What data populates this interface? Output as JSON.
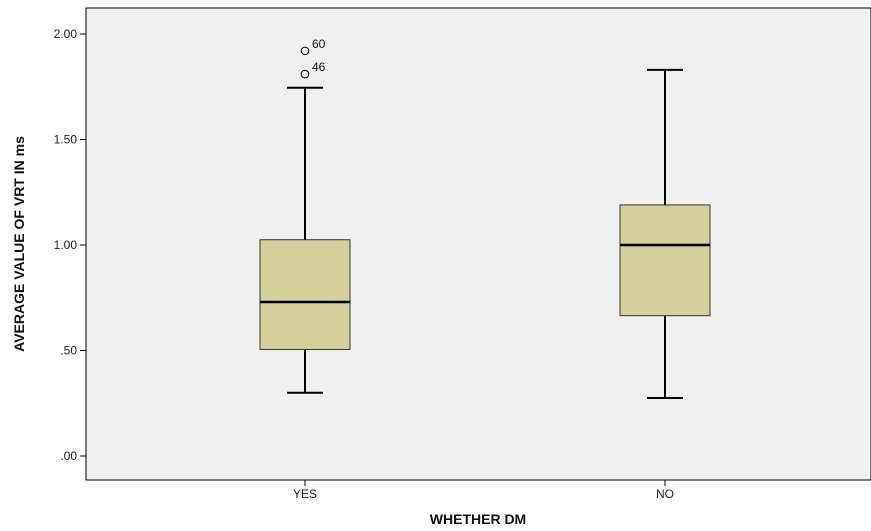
{
  "chart_data": {
    "type": "boxplot",
    "xlabel": "WHETHER DM",
    "ylabel": "AVERAGE VALUE OF VRT IN ms",
    "ylim": [
      -0.1,
      2.1
    ],
    "yticks": [
      {
        "value": 0.0,
        "label": ".00"
      },
      {
        "value": 0.5,
        "label": ".50"
      },
      {
        "value": 1.0,
        "label": "1.00"
      },
      {
        "value": 1.5,
        "label": "1.50"
      },
      {
        "value": 2.0,
        "label": "2.00"
      }
    ],
    "categories": [
      "YES",
      "NO"
    ],
    "boxes": [
      {
        "category": "YES",
        "whisker_low": 0.3,
        "q1": 0.505,
        "median": 0.73,
        "q3": 1.025,
        "whisker_high": 1.745,
        "outliers": [
          {
            "value": 1.92,
            "label": "60"
          },
          {
            "value": 1.81,
            "label": "46"
          }
        ]
      },
      {
        "category": "NO",
        "whisker_low": 0.275,
        "q1": 0.665,
        "median": 1.0,
        "q3": 1.19,
        "whisker_high": 1.83,
        "outliers": []
      }
    ],
    "grid": false,
    "colors": {
      "box_fill": "#d5cf9a",
      "plot_background": "#f0f0f0",
      "stroke": "#000000"
    }
  }
}
